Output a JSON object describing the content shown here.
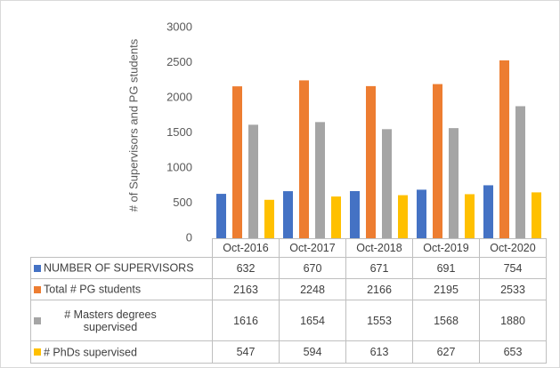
{
  "chart_data": {
    "type": "bar",
    "y_label": "# of Supervisors and PG students",
    "categories": [
      "Oct-2016",
      "Oct-2017",
      "Oct-2018",
      "Oct-2019",
      "Oct-2020"
    ],
    "series": [
      {
        "name": "NUMBER OF SUPERVISORS",
        "color": "#4472c4",
        "values": [
          632,
          670,
          671,
          691,
          754
        ]
      },
      {
        "name": "Total # PG students",
        "color": "#ed7d31",
        "values": [
          2163,
          2248,
          2166,
          2195,
          2533
        ]
      },
      {
        "name": "# Masters degrees supervised",
        "color": "#a5a5a5",
        "values": [
          1616,
          1654,
          1553,
          1568,
          1880
        ]
      },
      {
        "name": "# PhDs supervised",
        "color": "#ffc000",
        "values": [
          547,
          594,
          613,
          627,
          653
        ]
      }
    ],
    "ylim": [
      0,
      3000
    ],
    "yticks": [
      0,
      500,
      1000,
      1500,
      2000,
      2500,
      3000
    ],
    "grid": false
  }
}
